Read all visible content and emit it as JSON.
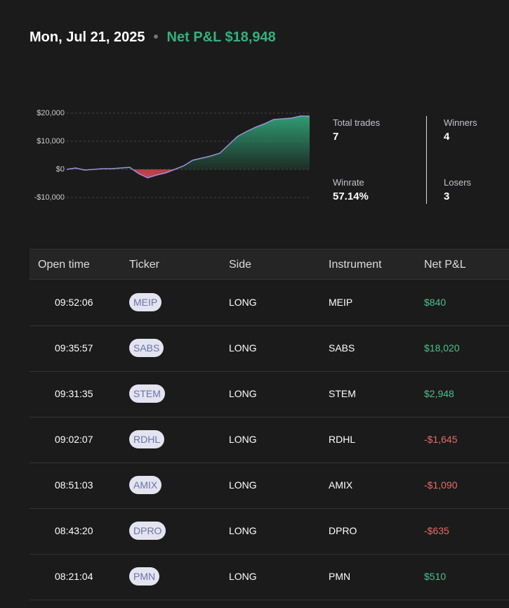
{
  "header": {
    "date": "Mon, Jul 21, 2025",
    "net_pnl": "Net P&L $18,948"
  },
  "chart_data": {
    "type": "area",
    "series": [
      {
        "color": "#9d92dc",
        "values": [
          0,
          500,
          -250,
          0,
          250,
          250,
          500,
          750,
          -1500,
          -3000,
          -2000,
          -1250,
          0,
          1250,
          3250,
          4000,
          4750,
          5750,
          8750,
          11750,
          13500,
          15000,
          16250,
          17750,
          18000,
          18250,
          19000,
          18948
        ]
      }
    ],
    "ylim": [
      -12000,
      21500
    ],
    "yticks": [
      {
        "value": 20000,
        "label": "$20,000"
      },
      {
        "value": 10000,
        "label": "$10,000"
      },
      {
        "value": 0,
        "label": "$0"
      },
      {
        "value": -10000,
        "label": "-$10,000"
      }
    ],
    "grid": true,
    "positive_color": "#2f9c72",
    "negative_color": "#c9444f"
  },
  "stats": [
    {
      "label": "Total trades",
      "value": "7"
    },
    {
      "label": "Winners",
      "value": "4"
    },
    {
      "label": "Winrate",
      "value": "57.14%"
    },
    {
      "label": "Losers",
      "value": "3"
    }
  ],
  "table": {
    "columns": [
      "Open time",
      "Ticker",
      "Side",
      "Instrument",
      "Net P&L"
    ],
    "rows": [
      [
        "09:52:06",
        "MEIP",
        "LONG",
        "MEIP",
        "$840"
      ],
      [
        "09:35:57",
        "SABS",
        "LONG",
        "SABS",
        "$18,020"
      ],
      [
        "09:31:35",
        "STEM",
        "LONG",
        "STEM",
        "$2,948"
      ],
      [
        "09:02:07",
        "RDHL",
        "LONG",
        "RDHL",
        "-$1,645"
      ],
      [
        "08:51:03",
        "AMIX",
        "LONG",
        "AMIX",
        "-$1,090"
      ],
      [
        "08:43:20",
        "DPRO",
        "LONG",
        "DPRO",
        "-$635"
      ],
      [
        "08:21:04",
        "PMN",
        "LONG",
        "PMN",
        "$510"
      ]
    ]
  }
}
